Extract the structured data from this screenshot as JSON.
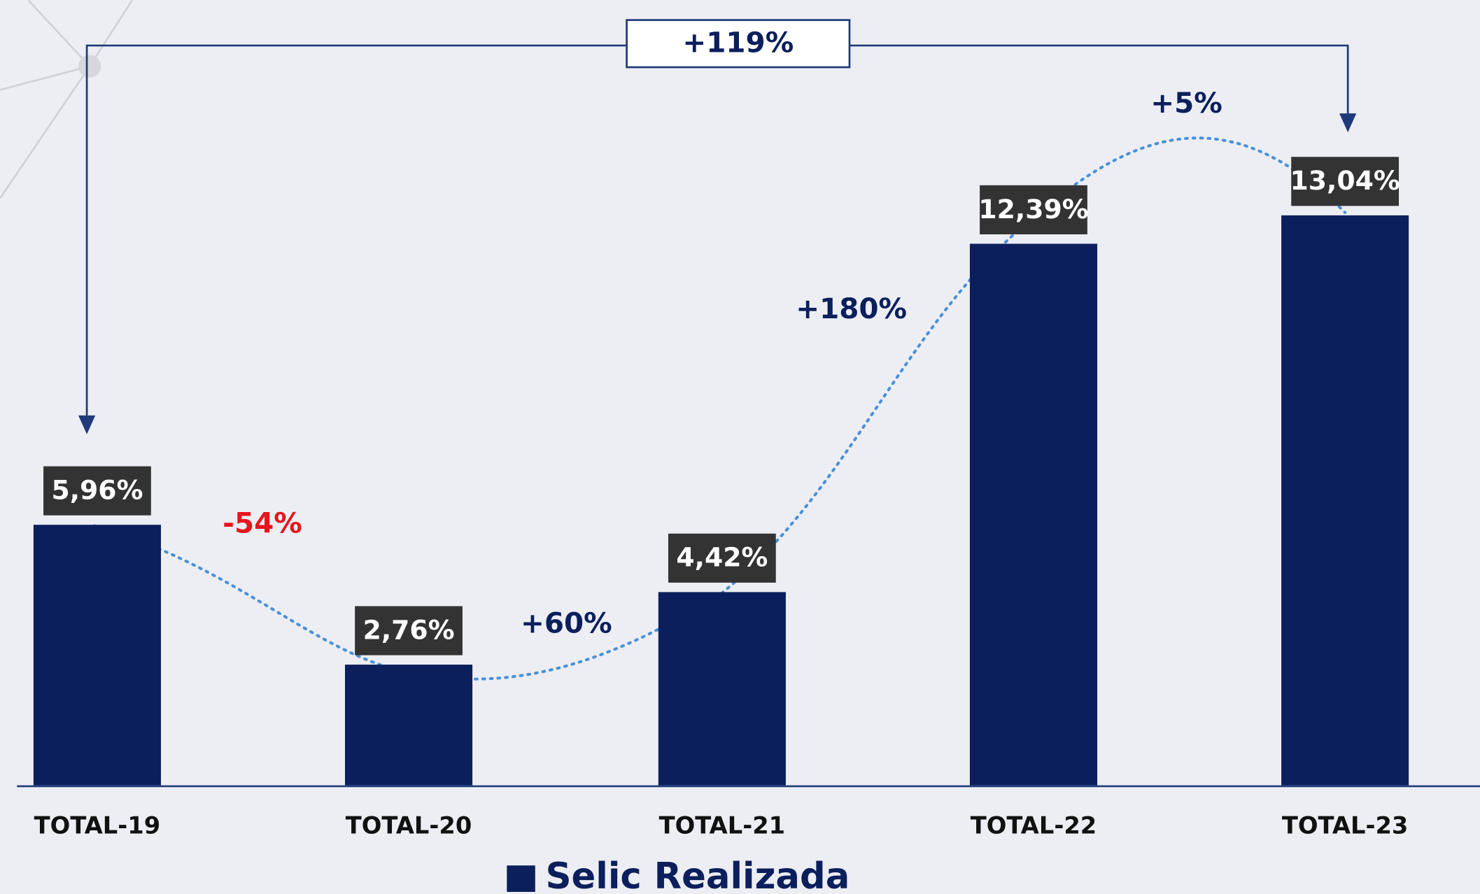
{
  "chart_data": {
    "type": "bar",
    "categories": [
      "TOTAL-19",
      "TOTAL-20",
      "TOTAL-21",
      "TOTAL-22",
      "TOTAL-23"
    ],
    "series": [
      {
        "name": "Selic Realizada",
        "color": "#0b1f5c",
        "values": [
          5.96,
          2.76,
          4.42,
          12.39,
          13.04
        ],
        "value_labels": [
          "5,96%",
          "2,76%",
          "4,42%",
          "12,39%",
          "13,04%"
        ]
      }
    ],
    "annotations": [
      {
        "text": "+119%",
        "color": "#0b1f5c"
      },
      {
        "text": "-54%",
        "color": "#e8141c"
      },
      {
        "text": "+60%",
        "color": "#0b1f5c"
      },
      {
        "text": "+180%",
        "color": "#0b1f5c"
      },
      {
        "text": "+5%",
        "color": "#0b1f5c"
      }
    ]
  }
}
